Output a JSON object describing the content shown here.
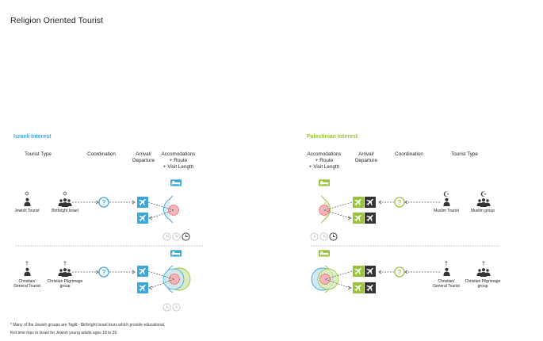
{
  "title": "Religion Oriented Tourist",
  "colors": {
    "israeli": "#3ea5d8",
    "palestinian": "#9ac33c",
    "dark": "#333333",
    "grey": "#c8c8c8",
    "red": "#e0454f"
  },
  "israeli": {
    "section_title": "Israeli Interest",
    "headers": {
      "tourist_type": "Tourist Type",
      "coordination": "Coordination",
      "arrival": "Arrival/\nDeparture",
      "accommodations": "Accomodations\n+ Route\n+ Visit Length"
    },
    "row1": {
      "tourist_1": "Jewish Tourist",
      "tourist_2": "Birthright Israel",
      "icon_1": "star-of-david-icon",
      "icon_2": "star-of-david-icon"
    },
    "row2": {
      "tourist_1": "Christian/\nGeneral Tourist",
      "tourist_2": "Christian Pilgrimage\ngroup",
      "icon_1": "cross-icon",
      "icon_2": "cross-icon"
    }
  },
  "palestinian": {
    "section_title": "Palestinian Interest",
    "headers": {
      "accommodations": "Accomodations\n+ Route\n+ Visit Length",
      "arrival": "Arrival/\nDeparture",
      "coordination": "Coordination",
      "tourist_type": "Tourist Type"
    },
    "row1": {
      "tourist_1": "Muslim Tourist",
      "tourist_2": "Muslim group",
      "icon_1": "crescent-icon",
      "icon_2": "crescent-icon"
    },
    "row2": {
      "tourist_1": "Christian/\nGeneral Tourist",
      "tourist_2": "Christian Pilgrimage\ngroup",
      "icon_1": "cross-icon",
      "icon_2": "cross-icon"
    }
  },
  "coordination_symbol": "?",
  "footnote": {
    "line1": "* Many of the Jewish groups are Taglit - Birthright Israel tours which provide educational,",
    "line2": "first time trips to Israel for Jewish young adults ages 18 to 26."
  }
}
